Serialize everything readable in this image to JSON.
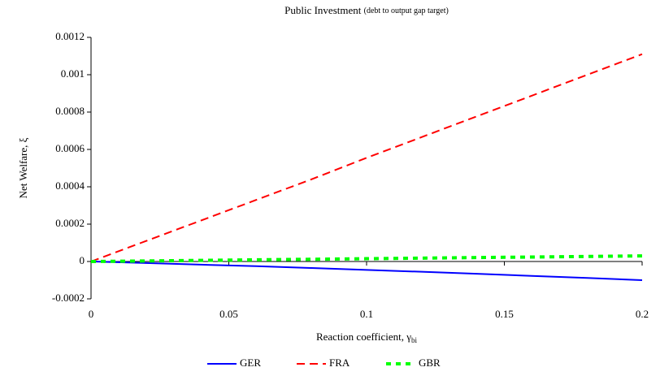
{
  "chart_data": {
    "type": "line",
    "title": "Public Investment",
    "subtitle": "(debt to output gap target)",
    "x_label": "Reaction coefficient, γ",
    "x_label_sub": "bi",
    "y_label": "Net Welfare, ξ",
    "x": [
      0,
      0.02,
      0.04,
      0.06,
      0.08,
      0.1,
      0.12,
      0.14,
      0.16,
      0.18,
      0.2
    ],
    "series": [
      {
        "name": "GER",
        "color": "#0000ff",
        "style": "solid",
        "values": [
          0,
          -8e-06,
          -1.7e-05,
          -2.5e-05,
          -3.5e-05,
          -4.5e-05,
          -5.5e-05,
          -6.6e-05,
          -7.7e-05,
          -8.8e-05,
          -0.0001
        ]
      },
      {
        "name": "FRA",
        "color": "#ff0000",
        "style": "dashed",
        "values": [
          0,
          0.00011,
          0.00022,
          0.00033,
          0.00044,
          0.000555,
          0.000666,
          0.000777,
          0.000888,
          0.000999,
          0.00111
        ]
      },
      {
        "name": "GBR",
        "color": "#00ff00",
        "style": "dotted",
        "values": [
          0,
          3e-06,
          6e-06,
          9e-06,
          1.2e-05,
          1.5e-05,
          1.8e-05,
          2.1e-05,
          2.4e-05,
          2.7e-05,
          3e-05
        ]
      }
    ],
    "xlim": [
      0,
      0.2
    ],
    "xticks": [
      0,
      0.05,
      0.1,
      0.15,
      0.2
    ],
    "ylim": [
      -0.0002,
      0.0012
    ],
    "yticks": [
      -0.0002,
      0,
      0.0002,
      0.0004,
      0.0006,
      0.0008,
      0.001,
      0.0012
    ],
    "grid": false,
    "legend": "bottom"
  }
}
